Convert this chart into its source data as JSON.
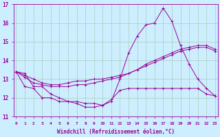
{
  "xlabel": "Windchill (Refroidissement éolien,°C)",
  "bg_color": "#cceeff",
  "grid_color": "#aaccbb",
  "line_color": "#990099",
  "xmin": 0,
  "xmax": 23,
  "ymin": 11,
  "ymax": 17,
  "series": [
    [
      13.4,
      13.3,
      12.6,
      12.6,
      12.2,
      12.0,
      11.8,
      11.7,
      11.5,
      11.5,
      11.6,
      11.8,
      13.0,
      14.4,
      15.3,
      15.9,
      16.0,
      16.8,
      16.1,
      14.8,
      13.8,
      13.0,
      12.5,
      12.1
    ],
    [
      13.4,
      12.6,
      12.5,
      12.0,
      12.0,
      11.8,
      11.8,
      11.8,
      11.7,
      11.7,
      11.6,
      11.9,
      12.4,
      12.5,
      12.5,
      12.5,
      12.5,
      12.5,
      12.5,
      12.5,
      12.5,
      12.5,
      12.2,
      12.1
    ],
    [
      13.4,
      13.2,
      13.0,
      12.8,
      12.7,
      12.7,
      12.8,
      12.9,
      12.9,
      13.0,
      13.0,
      13.1,
      13.2,
      13.3,
      13.5,
      13.8,
      14.0,
      14.2,
      14.4,
      14.6,
      14.7,
      14.8,
      14.8,
      14.6
    ],
    [
      13.4,
      13.1,
      12.8,
      12.7,
      12.6,
      12.6,
      12.6,
      12.7,
      12.7,
      12.8,
      12.9,
      13.0,
      13.1,
      13.3,
      13.5,
      13.7,
      13.9,
      14.1,
      14.3,
      14.5,
      14.6,
      14.7,
      14.7,
      14.5
    ]
  ]
}
